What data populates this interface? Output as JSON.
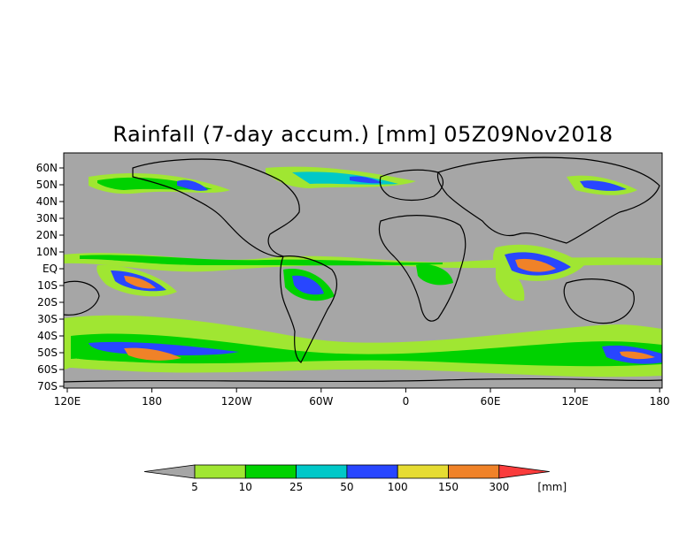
{
  "title": "Rainfall (7-day accum.) [mm] 05Z09Nov2018",
  "map": {
    "lat_labels": [
      "60N",
      "50N",
      "40N",
      "30N",
      "20N",
      "10N",
      "EQ",
      "10S",
      "20S",
      "30S",
      "40S",
      "50S",
      "60S",
      "70S"
    ],
    "lon_labels": [
      "120E",
      "180",
      "120W",
      "60W",
      "0",
      "60E",
      "120E",
      "180"
    ],
    "background_color": "#a6a6a6"
  },
  "legend": {
    "thresholds": [
      "5",
      "10",
      "25",
      "50",
      "100",
      "150",
      "300"
    ],
    "unit": "[mm]",
    "colors": {
      "below": "#a6a6a6",
      "c1": "#a0e632",
      "c2": "#00d200",
      "c3": "#00c8c8",
      "c4": "#2846ff",
      "c5": "#e6dc32",
      "c6": "#f08228",
      "above": "#fa3c3c"
    }
  }
}
